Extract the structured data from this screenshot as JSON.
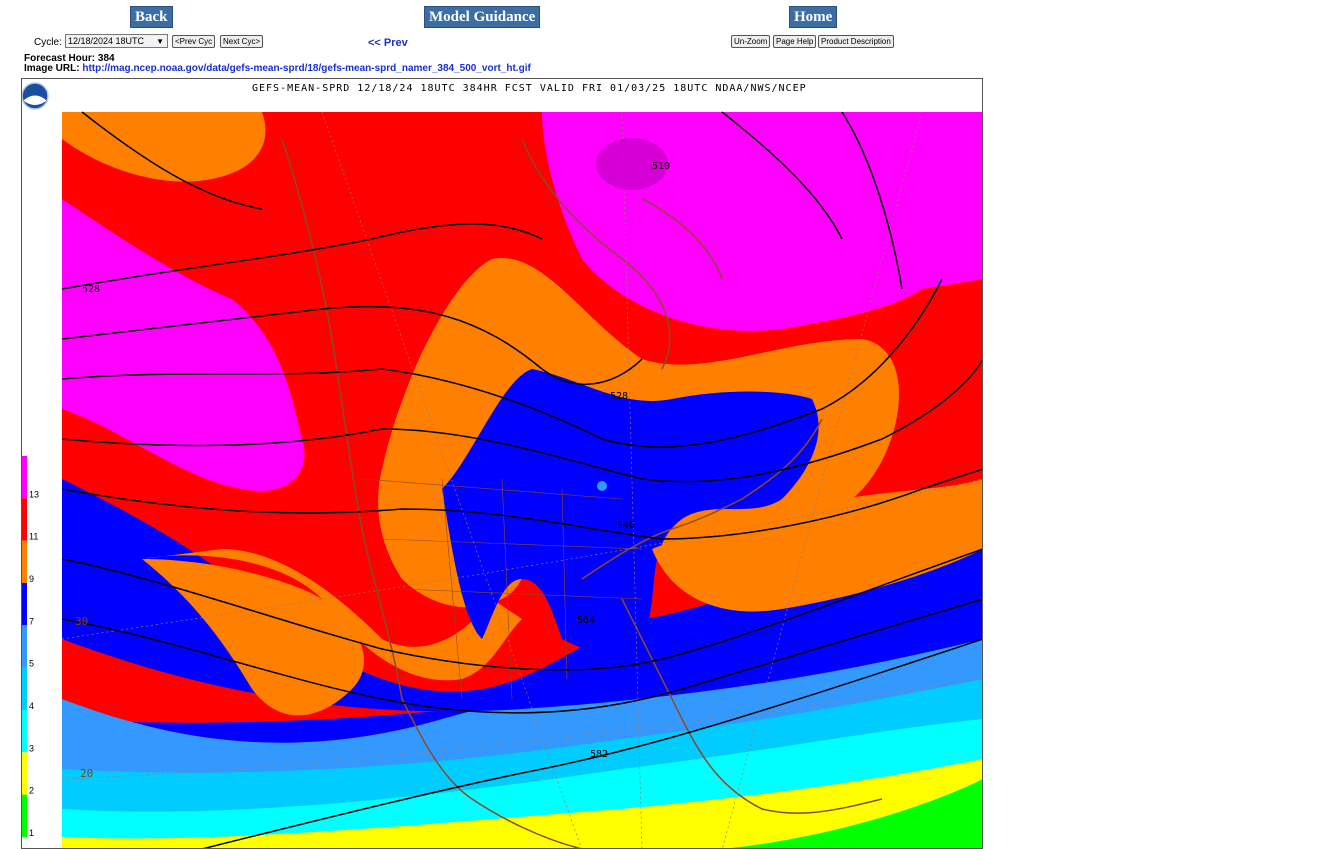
{
  "nav": {
    "back_label": "Back",
    "guidance_label": "Model Guidance",
    "home_label": "Home"
  },
  "controls": {
    "cycle_label": "Cycle:",
    "cycle_value": "12/18/2024 18UTC",
    "prev_cycle_label": "<Prev Cyc",
    "next_cycle_label": "Next Cyc>",
    "prev_label": "<< Prev",
    "unzoom_label": "Un-Zoom",
    "page_help_label": "Page Help",
    "product_desc_label": "Product Description"
  },
  "info": {
    "forecast_hour_label": "Forecast Hour: 384",
    "image_url_label": "Image URL:",
    "image_url": "http://mag.ncep.noaa.gov/data/gefs-mean-sprd/18/gefs-mean-sprd_namer_384_500_vort_ht.gif"
  },
  "map": {
    "title": "GEFS-MEAN-SPRD 12/18/24 18UTC 384HR FCST VALID FRI 01/03/25 18UTC NDAA/NWS/NCEP",
    "logo_text": "NOAA",
    "color_scale": [
      {
        "label": "13",
        "color": "#ff00ff"
      },
      {
        "label": "11",
        "color": "#ff0000"
      },
      {
        "label": "9",
        "color": "#ff8000"
      },
      {
        "label": "7",
        "color": "#0000ff"
      },
      {
        "label": "5",
        "color": "#3399ff"
      },
      {
        "label": "4",
        "color": "#00ccff"
      },
      {
        "label": "3",
        "color": "#00ffff"
      },
      {
        "label": "2",
        "color": "#ffff00"
      },
      {
        "label": "1",
        "color": "#00ff00"
      }
    ],
    "contour_labels": [
      "510",
      "528",
      "528",
      "546",
      "564",
      "582"
    ],
    "lat_labels": [
      "30",
      "20"
    ]
  }
}
